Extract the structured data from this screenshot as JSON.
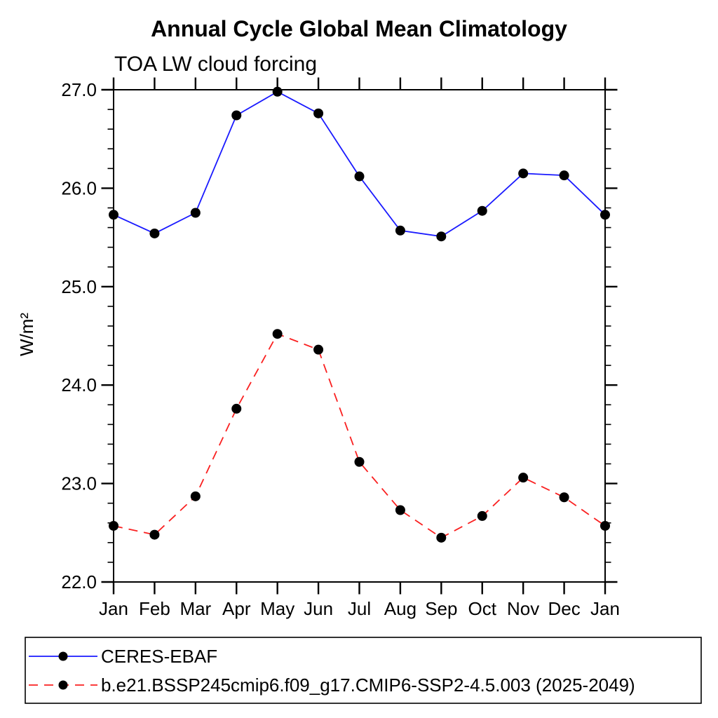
{
  "chart_data": {
    "type": "line",
    "title": "Annual Cycle Global Mean Climatology",
    "subtitle": "TOA LW cloud forcing",
    "ylabel": "W/m²",
    "xlabel": "",
    "categories": [
      "Jan",
      "Feb",
      "Mar",
      "Apr",
      "May",
      "Jun",
      "Jul",
      "Aug",
      "Sep",
      "Oct",
      "Nov",
      "Dec",
      "Jan"
    ],
    "series": [
      {
        "name": "CERES-EBAF",
        "color": "#1a1aff",
        "line_style": "solid",
        "marker": "filled-circle",
        "marker_color": "#000000",
        "values": [
          25.73,
          25.54,
          25.75,
          26.74,
          26.98,
          26.76,
          26.12,
          25.57,
          25.51,
          25.77,
          26.15,
          26.13,
          25.73
        ]
      },
      {
        "name": "b.e21.BSSP245cmip6.f09_g17.CMIP6-SSP2-4.5.003 (2025-2049)",
        "color": "#fa2020",
        "line_style": "dashed",
        "marker": "filled-circle",
        "marker_color": "#000000",
        "values": [
          22.57,
          22.48,
          22.87,
          23.76,
          24.52,
          24.36,
          23.22,
          22.73,
          22.45,
          22.67,
          23.06,
          22.86,
          22.57
        ]
      }
    ],
    "ylim": [
      22.0,
      27.0
    ],
    "ytick_values": [
      22,
      23,
      24,
      25,
      26,
      27
    ],
    "ytick_labels": [
      "22.0",
      "23.0",
      "24.0",
      "25.0",
      "26.0",
      "27.0"
    ],
    "yminor_interval": 0.2,
    "grid": false,
    "legend_position": "bottom-left-box",
    "axis_color": "#000000",
    "text_color": "#000000",
    "background_color": "#ffffff"
  }
}
